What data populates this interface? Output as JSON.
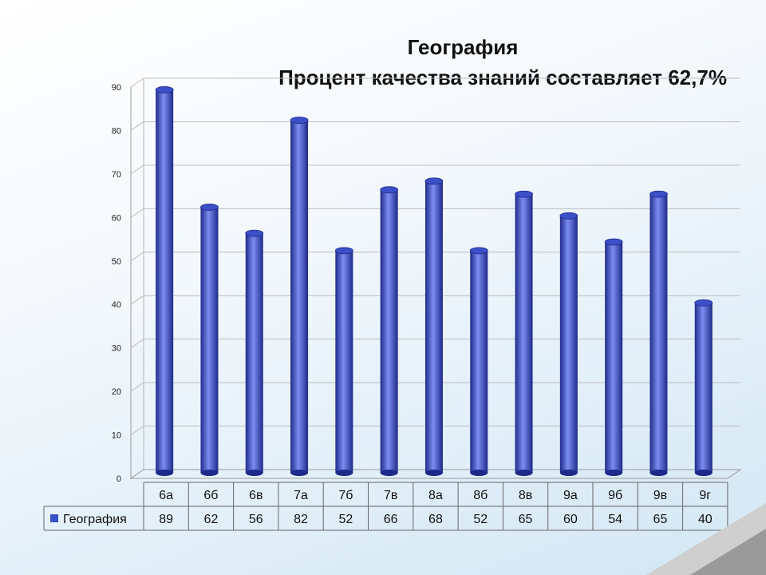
{
  "title_line1": "География",
  "title_line2": "Процент качества знаний составляет 62,7%",
  "colors": {
    "bar": "#3b4fc8",
    "bar_dark": "#1e2a8a",
    "bar_light": "#7b8ef0"
  },
  "chart_data": {
    "type": "bar",
    "categories": [
      "6а",
      "6б",
      "6в",
      "7а",
      "7б",
      "7в",
      "8а",
      "8б",
      "8в",
      "9а",
      "9б",
      "9в",
      "9г"
    ],
    "series": [
      {
        "name": "География",
        "values": [
          89,
          62,
          56,
          82,
          52,
          66,
          68,
          52,
          65,
          60,
          54,
          65,
          40
        ]
      }
    ],
    "ylim": [
      0,
      90
    ],
    "yticks": [
      0,
      10,
      20,
      30,
      40,
      50,
      60,
      70,
      80,
      90
    ],
    "grid": true,
    "legend": "data-table-left",
    "data_table": true
  }
}
